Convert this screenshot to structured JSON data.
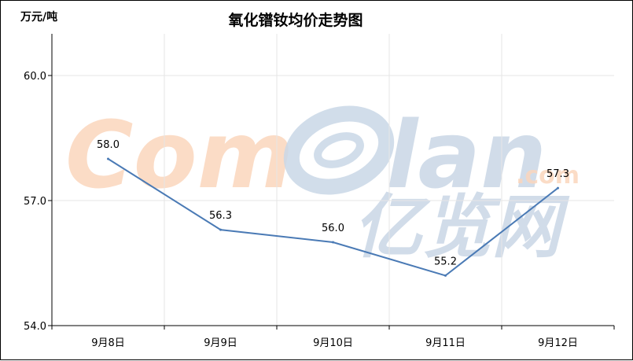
{
  "header": {
    "unit": "万元/吨"
  },
  "watermark": {
    "text_left": "Com",
    "text_right": "lan",
    "suffix": ".com",
    "cn_text": "亿览网"
  },
  "chart_data": {
    "type": "line",
    "title": "氧化镨钕均价走势图",
    "xlabel": "",
    "ylabel": "万元/吨",
    "categories": [
      "9月8日",
      "9月9日",
      "9月10日",
      "9月11日",
      "9月12日"
    ],
    "series": [
      {
        "values": [
          58.0,
          56.3,
          56.0,
          55.2,
          57.3
        ],
        "color": "#4a7ab5"
      }
    ],
    "data_labels": [
      "58.0",
      "56.3",
      "56.0",
      "55.2",
      "57.3"
    ],
    "yticks": [
      54.0,
      57.0,
      60.0
    ],
    "ytick_labels": [
      "54.0",
      "57.0",
      "60.0"
    ],
    "ylim": [
      54.0,
      61.0
    ],
    "grid": true
  }
}
